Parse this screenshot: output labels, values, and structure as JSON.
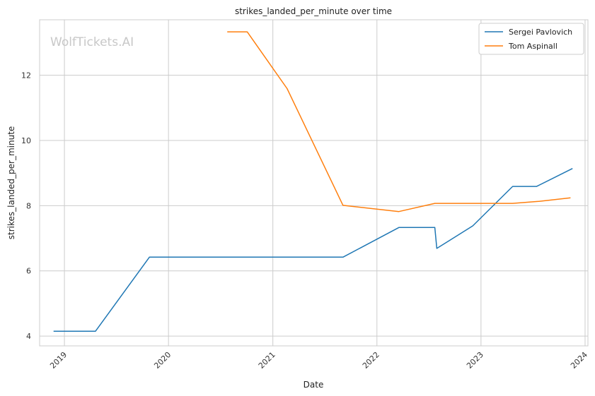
{
  "chart_data": {
    "type": "line",
    "title": "strikes_landed_per_minute over time",
    "xlabel": "Date",
    "ylabel": "strikes_landed_per_minute",
    "watermark": "WolfTickets.AI",
    "x_ticks": [
      "2019",
      "2020",
      "2021",
      "2022",
      "2023",
      "2024"
    ],
    "y_ticks": [
      4,
      6,
      8,
      10,
      12
    ],
    "xlim": [
      "2018-10-06",
      "2024-01-11"
    ],
    "ylim": [
      3.7,
      13.7
    ],
    "grid": true,
    "legend_position": "top-right",
    "series": [
      {
        "name": "Sergei Pavlovich",
        "color": "#1f77b4",
        "points": [
          {
            "x": "2018-11-24",
            "y": 4.15
          },
          {
            "x": "2019-04-20",
            "y": 4.15
          },
          {
            "x": "2019-10-26",
            "y": 6.42
          },
          {
            "x": "2021-09-04",
            "y": 6.42
          },
          {
            "x": "2022-03-19",
            "y": 7.33
          },
          {
            "x": "2022-07-23",
            "y": 7.33
          },
          {
            "x": "2022-07-30",
            "y": 6.69
          },
          {
            "x": "2022-12-03",
            "y": 7.38
          },
          {
            "x": "2023-04-22",
            "y": 8.59
          },
          {
            "x": "2023-07-15",
            "y": 8.59
          },
          {
            "x": "2023-11-18",
            "y": 9.14
          }
        ]
      },
      {
        "name": "Tom Aspinall",
        "color": "#ff7f0e",
        "points": [
          {
            "x": "2020-07-25",
            "y": 13.33
          },
          {
            "x": "2020-10-03",
            "y": 13.33
          },
          {
            "x": "2021-02-20",
            "y": 11.59
          },
          {
            "x": "2021-09-04",
            "y": 8.01
          },
          {
            "x": "2022-03-19",
            "y": 7.82
          },
          {
            "x": "2022-07-23",
            "y": 8.07
          },
          {
            "x": "2023-04-22",
            "y": 8.07
          },
          {
            "x": "2023-07-22",
            "y": 8.13
          },
          {
            "x": "2023-11-11",
            "y": 8.24
          }
        ]
      }
    ]
  }
}
